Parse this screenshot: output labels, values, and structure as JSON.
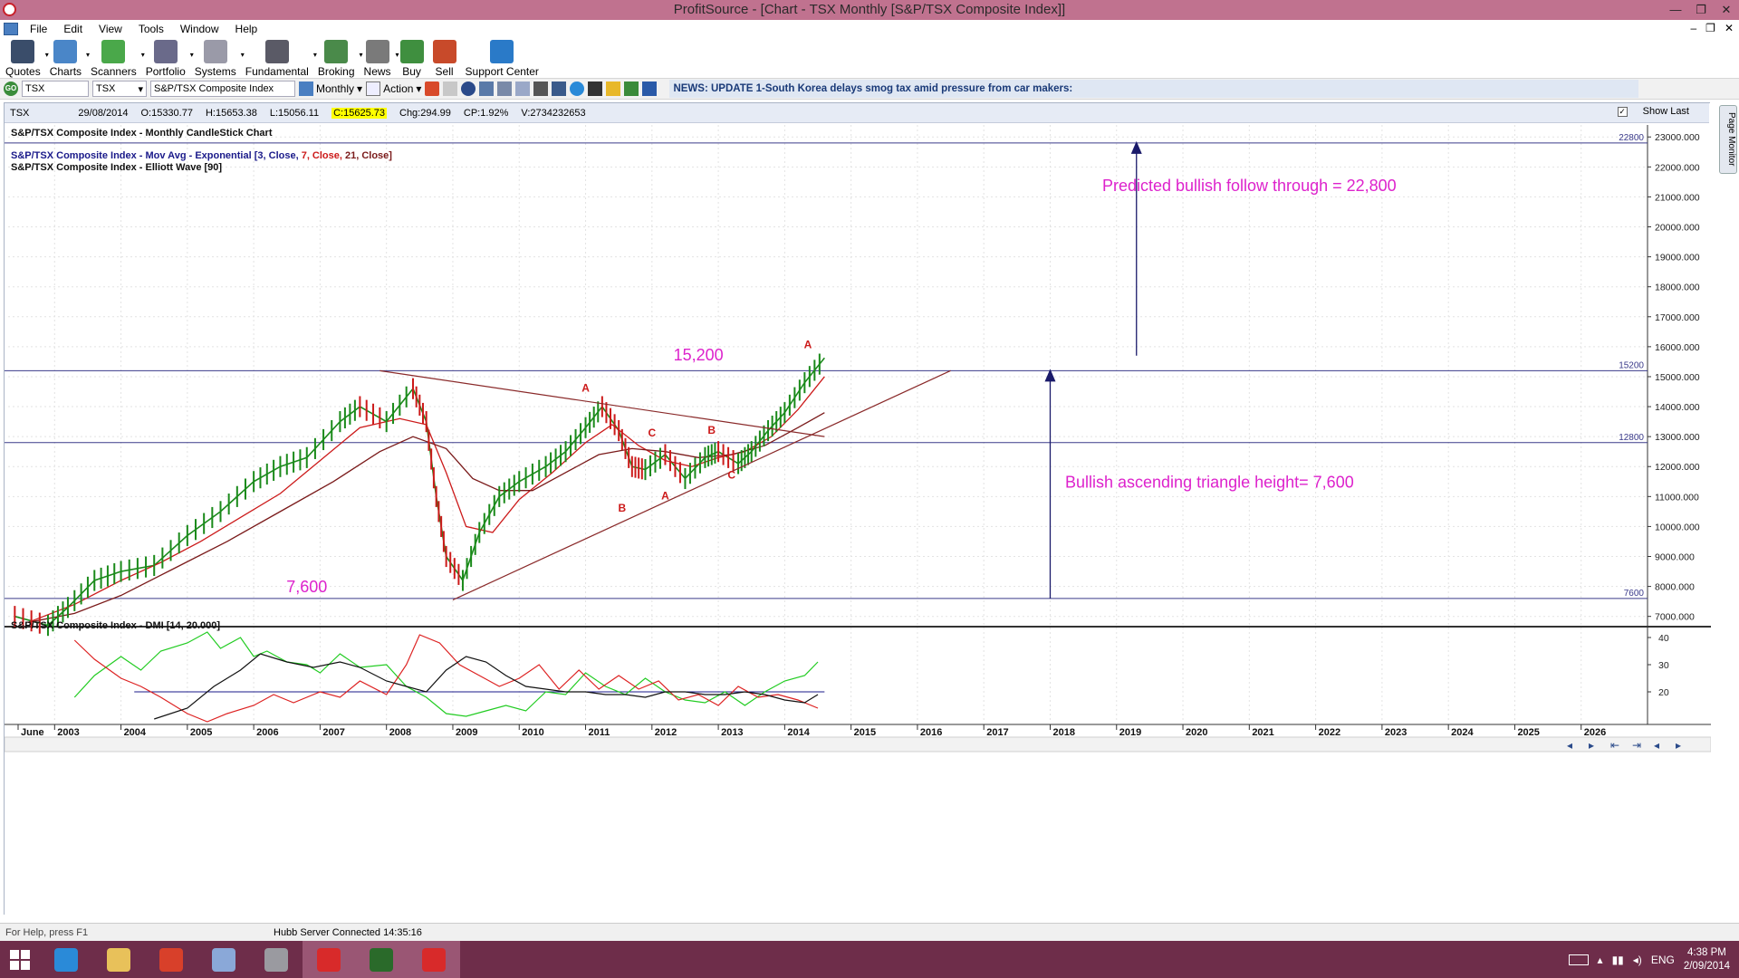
{
  "window": {
    "title": "ProfitSource - [Chart - TSX Monthly [S&P/TSX Composite Index]]",
    "controls": [
      "—",
      "❐",
      "✕"
    ]
  },
  "menu": [
    "File",
    "Edit",
    "View",
    "Tools",
    "Window",
    "Help"
  ],
  "mdi_controls": [
    "–",
    "❐",
    "✕"
  ],
  "toolbar": [
    {
      "label": "Quotes",
      "icon": "quotes-icon",
      "color": "#3a4d6a"
    },
    {
      "label": "Charts",
      "icon": "charts-icon",
      "color": "#4a86c8"
    },
    {
      "label": "Scanners",
      "icon": "scanners-icon",
      "color": "#4aa84a"
    },
    {
      "label": "Portfolio",
      "icon": "portfolio-icon",
      "color": "#6a6a8a"
    },
    {
      "label": "Systems",
      "icon": "systems-icon",
      "color": "#9a9aa8"
    },
    {
      "label": "Fundamental",
      "icon": "fundamental-icon",
      "color": "#5a5a66"
    },
    {
      "label": "Broking",
      "icon": "broking-icon",
      "color": "#4a8a4a"
    },
    {
      "label": "News",
      "icon": "news-icon",
      "color": "#7a7a7a"
    },
    {
      "label": "Buy",
      "icon": "buy-icon",
      "color": "#3f8f3f"
    },
    {
      "label": "Sell",
      "icon": "sell-icon",
      "color": "#c84a2a"
    },
    {
      "label": "Support Center",
      "icon": "help-icon",
      "color": "#2a7ac8"
    }
  ],
  "toolbar2": {
    "symbol": "TSX",
    "exchange": "TSX",
    "security_name": "S&P/TSX Composite Index",
    "period": "Monthly",
    "action": "Action",
    "news": "NEWS: UPDATE 1-South Korea delays smog tax amid pressure from car makers:"
  },
  "infobar": {
    "symbol": "TSX",
    "date": "29/08/2014",
    "open": "O:15330.77",
    "high": "H:15653.38",
    "low": "L:15056.11",
    "close": "C:15625.73",
    "change": "Chg:294.99",
    "change_pct": "CP:1.92%",
    "volume": "V:2734232653",
    "show_last": "Show Last"
  },
  "page_monitor": "Page Monitor",
  "chart_data": {
    "type": "line",
    "title": "S&P/TSX Composite Index - Monthly CandleStick Chart",
    "legends": [
      "S&P/TSX Composite Index - Mov Avg - Exponential",
      "[3, Close,",
      "7, Close,",
      "21, Close]",
      "S&P/TSX Composite Index - Elliott Wave [90]"
    ],
    "x_labels": [
      "June",
      "2003",
      "2004",
      "2005",
      "2006",
      "2007",
      "2008",
      "2009",
      "2010",
      "2011",
      "2012",
      "2013",
      "2014",
      "2015",
      "2016",
      "2017",
      "2018",
      "2019",
      "2020",
      "2021",
      "2022",
      "2023",
      "2024",
      "2025",
      "2026"
    ],
    "y_ticks": [
      "23000.000",
      "22000.000",
      "21000.000",
      "20000.000",
      "19000.000",
      "18000.000",
      "17000.000",
      "16000.000",
      "15000.000",
      "14000.000",
      "13000.000",
      "12000.000",
      "11000.000",
      "10000.000",
      "9000.000",
      "8000.000",
      "7000.000"
    ],
    "ylim": [
      6900,
      23400
    ],
    "hlines": [
      {
        "label": "22800",
        "value": 22800
      },
      {
        "label": "15200",
        "value": 15200
      },
      {
        "label": "12800",
        "value": 12800
      },
      {
        "label": "7600",
        "value": 7600
      }
    ],
    "series": [
      {
        "name": "close",
        "x": [
          2002.4,
          2002.9,
          2003.2,
          2003.6,
          2004.0,
          2004.5,
          2005.0,
          2005.5,
          2006.0,
          2006.4,
          2006.8,
          2007.3,
          2007.6,
          2008.0,
          2008.4,
          2008.6,
          2008.75,
          2008.9,
          2009.15,
          2009.4,
          2009.7,
          2010.0,
          2010.4,
          2010.7,
          2011.0,
          2011.25,
          2011.5,
          2011.7,
          2011.9,
          2012.2,
          2012.5,
          2012.8,
          2013.0,
          2013.3,
          2013.5,
          2013.75,
          2014.0,
          2014.3,
          2014.6
        ],
        "y": [
          7000,
          6700,
          7300,
          8200,
          8500,
          8700,
          9700,
          10500,
          11500,
          12000,
          12300,
          13500,
          14000,
          13500,
          14600,
          13500,
          11000,
          9000,
          8200,
          9800,
          11000,
          11500,
          12000,
          12500,
          13300,
          14000,
          13200,
          12000,
          11900,
          12400,
          11600,
          12300,
          12500,
          12100,
          12500,
          13200,
          13800,
          14800,
          15625
        ]
      },
      {
        "name": "EMA 7",
        "x": [
          2002.6,
          2003.3,
          2004.0,
          2004.6,
          2005.2,
          2005.8,
          2006.4,
          2007.0,
          2007.6,
          2008.2,
          2008.6,
          2008.9,
          2009.2,
          2009.6,
          2010.0,
          2010.5,
          2011.0,
          2011.4,
          2011.8,
          2012.2,
          2012.6,
          2013.0,
          2013.4,
          2013.8,
          2014.2,
          2014.6
        ],
        "y": [
          6800,
          7400,
          8200,
          8800,
          9500,
          10300,
          11100,
          12200,
          13300,
          13600,
          13400,
          11800,
          10000,
          9800,
          10900,
          11800,
          12800,
          13400,
          12700,
          12200,
          12000,
          12300,
          12500,
          13000,
          13900,
          15000
        ]
      },
      {
        "name": "EMA 21",
        "x": [
          2002.6,
          2003.3,
          2004.0,
          2004.8,
          2005.6,
          2006.4,
          2007.2,
          2007.9,
          2008.4,
          2008.9,
          2009.3,
          2009.7,
          2010.2,
          2010.7,
          2011.2,
          2011.7,
          2012.2,
          2012.7,
          2013.2,
          2013.7,
          2014.2,
          2014.6
        ],
        "y": [
          6800,
          7100,
          7700,
          8600,
          9500,
          10500,
          11500,
          12500,
          13000,
          12600,
          11600,
          11200,
          11200,
          11800,
          12400,
          12600,
          12500,
          12300,
          12400,
          12700,
          13300,
          13800
        ]
      }
    ],
    "trendlines": [
      {
        "name": "upper-trendline",
        "x": [
          2007.9,
          2014.6
        ],
        "y": [
          15200,
          13000
        ]
      },
      {
        "name": "lower-trendline",
        "x": [
          2009.0,
          2016.5
        ],
        "y": [
          7550,
          15200
        ]
      }
    ],
    "arrows": [
      {
        "name": "triangle-height-arrow",
        "x": 2018.0,
        "y": [
          7600,
          15200
        ]
      },
      {
        "name": "target-arrow",
        "x": 2019.3,
        "y": [
          15700,
          22800
        ]
      }
    ],
    "wave_labels": [
      {
        "text": "A",
        "x": 2011.0,
        "y": 14500
      },
      {
        "text": "B",
        "x": 2011.55,
        "y": 10500
      },
      {
        "text": "A",
        "x": 2012.2,
        "y": 10900
      },
      {
        "text": "C",
        "x": 2012.0,
        "y": 13000
      },
      {
        "text": "B",
        "x": 2012.9,
        "y": 13100
      },
      {
        "text": "C",
        "x": 2013.2,
        "y": 11600
      },
      {
        "text": "A",
        "x": 2014.35,
        "y": 15950
      }
    ],
    "annotations": [
      {
        "text": "15,200",
        "x": 2012.7,
        "y": 15550
      },
      {
        "text": "7,600",
        "x": 2006.8,
        "y": 7800
      },
      {
        "text": "Predicted bullish follow through = 22,800",
        "x": 2021.0,
        "y": 21200
      },
      {
        "text": "Bullish ascending triangle height= 7,600",
        "x": 2020.4,
        "y": 11300
      }
    ],
    "xlim": [
      2002.3,
      2027.0
    ]
  },
  "dmi": {
    "title": "S&P/TSX Composite Index - DMI [14, 20.000]",
    "y_ticks": [
      "40",
      "30",
      "20"
    ],
    "ylim": [
      9,
      44
    ],
    "threshold": 20,
    "series": [
      {
        "name": "+DI",
        "color": "#22cc22",
        "x": [
          2003.3,
          2003.6,
          2004.0,
          2004.3,
          2004.6,
          2005.0,
          2005.3,
          2005.5,
          2005.8,
          2006.0,
          2006.2,
          2006.5,
          2006.8,
          2007.0,
          2007.3,
          2007.6,
          2008.0,
          2008.3,
          2008.6,
          2008.9,
          2009.2,
          2009.5,
          2009.8,
          2010.1,
          2010.4,
          2010.7,
          2011.0,
          2011.3,
          2011.6,
          2011.9,
          2012.2,
          2012.5,
          2012.8,
          2013.1,
          2013.4,
          2013.7,
          2014.0,
          2014.3,
          2014.5
        ],
        "y": [
          18,
          26,
          33,
          28,
          35,
          38,
          42,
          36,
          40,
          33,
          35,
          31,
          30,
          27,
          34,
          29,
          30,
          22,
          18,
          12,
          11,
          13,
          15,
          13,
          20,
          19,
          27,
          22,
          19,
          25,
          20,
          17,
          16,
          20,
          15,
          20,
          24,
          26,
          31
        ]
      },
      {
        "name": "-DI",
        "color": "#dd2222",
        "x": [
          2003.3,
          2003.6,
          2004.0,
          2004.3,
          2004.6,
          2005.0,
          2005.3,
          2005.6,
          2006.0,
          2006.3,
          2006.6,
          2007.0,
          2007.3,
          2007.6,
          2008.0,
          2008.3,
          2008.5,
          2008.8,
          2009.1,
          2009.4,
          2009.7,
          2010.0,
          2010.3,
          2010.6,
          2010.9,
          2011.2,
          2011.5,
          2011.8,
          2012.1,
          2012.4,
          2012.7,
          2013.0,
          2013.3,
          2013.6,
          2013.9,
          2014.2,
          2014.5
        ],
        "y": [
          39,
          32,
          25,
          22,
          18,
          12,
          9,
          12,
          15,
          19,
          16,
          20,
          18,
          24,
          19,
          30,
          41,
          38,
          30,
          26,
          22,
          25,
          30,
          21,
          28,
          21,
          26,
          21,
          24,
          17,
          19,
          15,
          22,
          18,
          19,
          17,
          14
        ]
      },
      {
        "name": "ADX",
        "color": "#111111",
        "x": [
          2004.5,
          2005.0,
          2005.4,
          2005.8,
          2006.1,
          2006.5,
          2006.9,
          2007.3,
          2007.6,
          2008.0,
          2008.3,
          2008.6,
          2008.9,
          2009.2,
          2009.5,
          2009.8,
          2010.1,
          2010.4,
          2010.7,
          2011.0,
          2011.3,
          2011.6,
          2011.9,
          2012.2,
          2012.5,
          2012.8,
          2013.1,
          2013.4,
          2013.7,
          2014.0,
          2014.3,
          2014.5
        ],
        "y": [
          10,
          14,
          22,
          28,
          34,
          31,
          29,
          31,
          29,
          24,
          22,
          20,
          28,
          33,
          31,
          26,
          22,
          21,
          20,
          20,
          19,
          19,
          18,
          20,
          20,
          19,
          19,
          20,
          19,
          17,
          16,
          19
        ]
      }
    ]
  },
  "statusbar": {
    "help": "For Help, press F1",
    "server": "Hubb Server Connected 14:35:16"
  },
  "taskbar": {
    "tasks": [
      {
        "name": "ie-icon",
        "color": "#2a8ad8"
      },
      {
        "name": "explorer-icon",
        "color": "#e8c15a"
      },
      {
        "name": "chrome-icon",
        "color": "#d8402a"
      },
      {
        "name": "calculator-icon",
        "color": "#8aa8d8"
      },
      {
        "name": "app-icon",
        "color": "#9a9aa0"
      },
      {
        "name": "recorder-icon",
        "color": "#d82a2a"
      },
      {
        "name": "go-icon",
        "color": "#2a6a2a"
      },
      {
        "name": "profitsource-icon",
        "color": "#d82a2a"
      }
    ],
    "language": "ENG",
    "time": "4:38 PM",
    "date": "2/09/2014"
  }
}
